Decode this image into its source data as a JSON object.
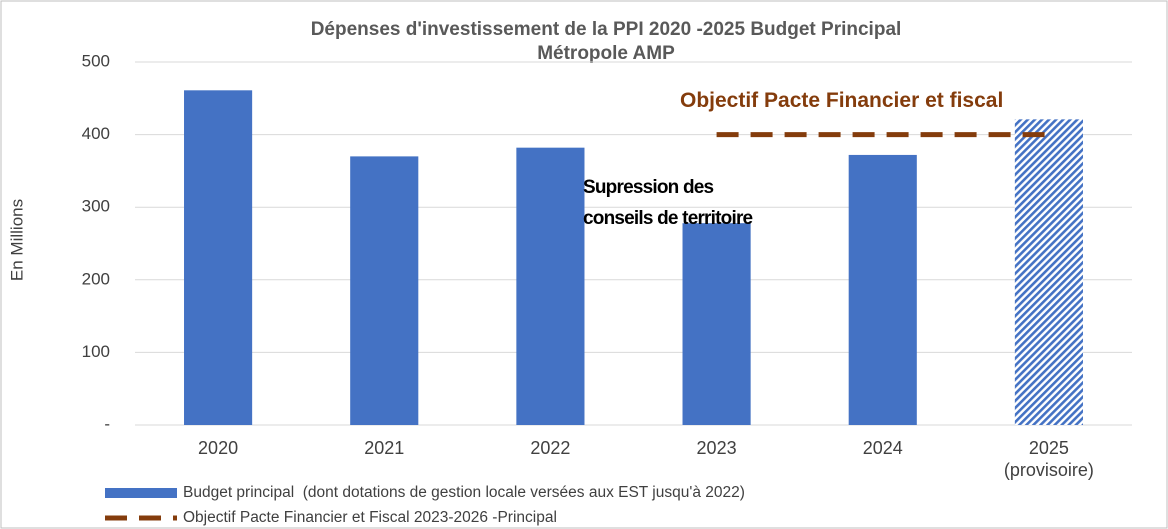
{
  "chart_data": {
    "type": "bar",
    "title": [
      "Dépenses d'investissement de la PPI 2020 -2025 Budget Principal",
      "Métropole AMP"
    ],
    "y_label": "En Millions",
    "categories": [
      "2020",
      "2021",
      "2022",
      "2023",
      "2024",
      "2025 (provisoire)"
    ],
    "series": [
      {
        "name": "Budget principal  (dont dotations de gestion locale versées aux EST jusqu'à 2022)",
        "type": "bar",
        "color": "#4472c4",
        "values": [
          461,
          370,
          382,
          278,
          372,
          421
        ],
        "hatched": [
          false,
          false,
          false,
          false,
          false,
          true
        ]
      },
      {
        "name": "Objectif Pacte Financier et Fiscal 2023-2026 -Principal",
        "type": "line",
        "color": "#843c0c",
        "dashed": true,
        "values": [
          null,
          null,
          null,
          400,
          400,
          400
        ]
      }
    ],
    "annotations": [
      "Objectif Pacte Financier et fiscal",
      "Supression des conseils de territoire"
    ],
    "ylim": [
      0,
      500
    ],
    "yticks": [
      {
        "value": 0,
        "label": "-"
      },
      100,
      200,
      300,
      400,
      500
    ],
    "grid": true
  }
}
